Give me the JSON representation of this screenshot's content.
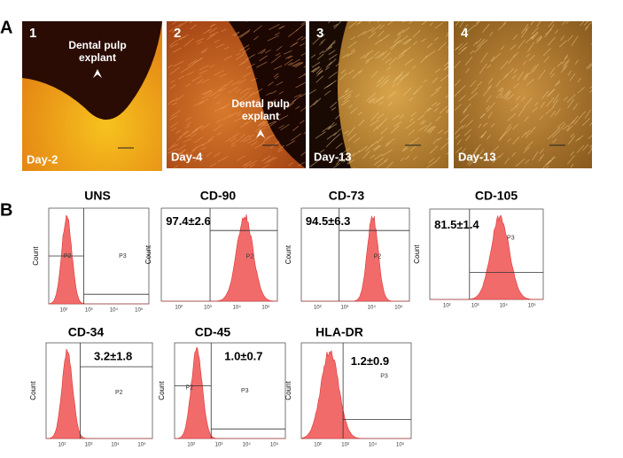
{
  "panel_labels": [
    "A",
    "B"
  ],
  "images": [
    {
      "number": "1",
      "day": "Day-2",
      "annotation": [
        "Dental pulp",
        "explant"
      ]
    },
    {
      "number": "2",
      "day": "Day-4",
      "annotation": [
        "Dental pulp",
        "explant"
      ]
    },
    {
      "number": "3",
      "day": "Day-13"
    },
    {
      "number": "4",
      "day": "Day-13"
    }
  ],
  "histograms": [
    {
      "title": "UNS",
      "gates": [
        "P2",
        "P3"
      ]
    },
    {
      "title": "CD-90",
      "percentage": "97.4±2.6",
      "gates": [
        "P2"
      ]
    },
    {
      "title": "CD-73",
      "percentage": "94.5±6.3",
      "gates": [
        "P2"
      ]
    },
    {
      "title": "CD-105",
      "percentage": "81.5±1.4",
      "gates": [
        "P3"
      ]
    },
    {
      "title": "CD-34",
      "percentage": "3.2±1.8",
      "gates": [
        "P2"
      ]
    },
    {
      "title": "CD-45",
      "percentage": "1.0±0.7",
      "gates": [
        "P2",
        "P3"
      ]
    },
    {
      "title": "HLA-DR",
      "percentage": "1.2±0.9",
      "gates": [
        "P3"
      ]
    }
  ],
  "y_axis_label": "Count",
  "x_ticks": [
    "10²",
    "10³",
    "10⁴",
    "10⁵"
  ]
}
